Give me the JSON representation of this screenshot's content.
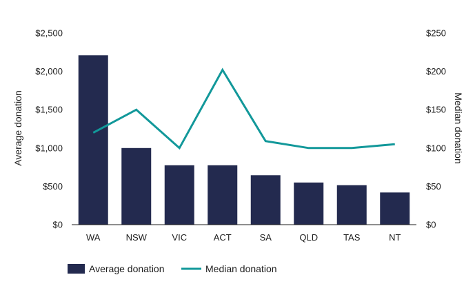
{
  "chart_data": {
    "type": "bar",
    "categories": [
      "WA",
      "NSW",
      "VIC",
      "ACT",
      "SA",
      "QLD",
      "TAS",
      "NT"
    ],
    "series": [
      {
        "name": "Average donation",
        "type": "bar",
        "axis": "left",
        "color": "#232a4f",
        "values": [
          2210,
          1000,
          775,
          775,
          645,
          550,
          515,
          420
        ]
      },
      {
        "name": "Median donation",
        "type": "line",
        "axis": "right",
        "color": "#12989a",
        "values": [
          120,
          150,
          100,
          202,
          109,
          100,
          100,
          105
        ]
      }
    ],
    "ylabel": "Average donation",
    "y2label": "Median donation",
    "ylim": [
      0,
      2500
    ],
    "y2lim": [
      0,
      250
    ],
    "yticks": [
      "$0",
      "$500",
      "$1,000",
      "$1,500",
      "$2,000",
      "$2,500"
    ],
    "y2ticks": [
      "$0",
      "$50",
      "$100",
      "$150",
      "$200",
      "$250"
    ],
    "grid": false,
    "legend_position": "bottom-left"
  }
}
